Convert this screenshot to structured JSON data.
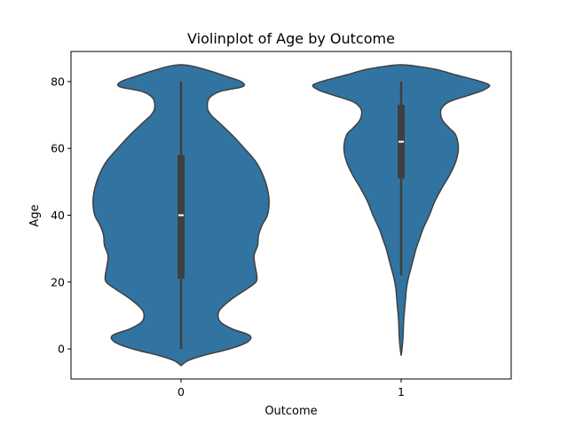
{
  "chart_data": {
    "type": "violin",
    "title": "Violinplot of Age by Outcome",
    "xlabel": "Outcome",
    "ylabel": "Age",
    "categories": [
      "0",
      "1"
    ],
    "ylim": [
      -9,
      89
    ],
    "yticks": [
      "0",
      "20",
      "40",
      "60",
      "80"
    ],
    "ytick_values": [
      0,
      20,
      40,
      60,
      80
    ],
    "grid": false,
    "color": "#3274a1",
    "violins": [
      {
        "category": "0",
        "min": 0,
        "q1": 21,
        "median": 40,
        "q3": 58,
        "max": 80,
        "kde_y": [
          -5,
          -3.5,
          -2,
          0,
          2,
          4,
          6,
          8,
          10,
          12,
          15,
          18,
          20,
          22,
          25,
          28,
          31,
          34,
          37,
          40,
          44,
          48,
          52,
          56,
          60,
          64,
          68,
          70,
          72,
          75,
          77,
          78.5,
          80,
          81.5,
          83,
          84.5,
          85
        ],
        "kde_w": [
          0.0,
          0.08,
          0.25,
          0.55,
          0.75,
          0.78,
          0.58,
          0.45,
          0.42,
          0.45,
          0.58,
          0.75,
          0.85,
          0.86,
          0.84,
          0.83,
          0.87,
          0.88,
          0.92,
          0.98,
          1.0,
          0.98,
          0.93,
          0.85,
          0.72,
          0.58,
          0.42,
          0.34,
          0.3,
          0.32,
          0.44,
          0.7,
          0.68,
          0.52,
          0.35,
          0.15,
          0.0
        ]
      },
      {
        "category": "1",
        "min": 22,
        "q1": 51,
        "median": 62,
        "q3": 73,
        "max": 80,
        "kde_y": [
          -2,
          0,
          3,
          6,
          9,
          12,
          15,
          18,
          21,
          24,
          27,
          30,
          33,
          36,
          40,
          44,
          48,
          52,
          56,
          60,
          64,
          66,
          68,
          70,
          72,
          74,
          76,
          77.5,
          79,
          80.5,
          82,
          83.5,
          84.5,
          85
        ],
        "kde_w": [
          0.0,
          0.01,
          0.02,
          0.025,
          0.03,
          0.04,
          0.05,
          0.06,
          0.08,
          0.11,
          0.14,
          0.17,
          0.21,
          0.25,
          0.32,
          0.38,
          0.46,
          0.55,
          0.62,
          0.65,
          0.62,
          0.55,
          0.48,
          0.45,
          0.46,
          0.55,
          0.78,
          0.94,
          1.0,
          0.84,
          0.62,
          0.42,
          0.2,
          0.0
        ]
      }
    ]
  }
}
